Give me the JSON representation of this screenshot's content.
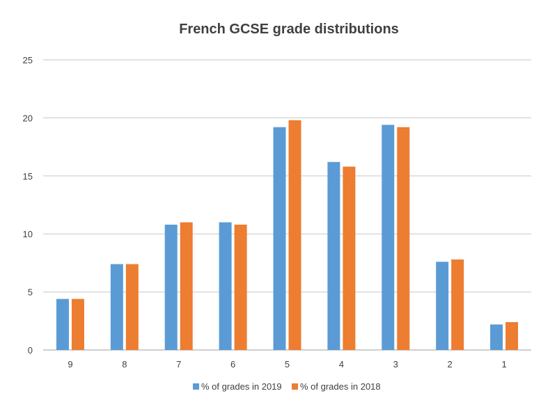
{
  "chart_data": {
    "type": "bar",
    "title": "French GCSE grade distributions",
    "xlabel": "",
    "ylabel": "",
    "categories": [
      "9",
      "8",
      "7",
      "6",
      "5",
      "4",
      "3",
      "2",
      "1"
    ],
    "series": [
      {
        "name": "% of grades in 2019",
        "color": "#5B9BD5",
        "values": [
          4.4,
          7.4,
          10.8,
          11.0,
          19.2,
          16.2,
          19.4,
          7.6,
          2.2
        ]
      },
      {
        "name": "% of grades in 2018",
        "color": "#ED7D31",
        "values": [
          4.4,
          7.4,
          11.0,
          10.8,
          19.8,
          15.8,
          19.2,
          7.8,
          2.4
        ]
      }
    ],
    "ylim": [
      0,
      25
    ],
    "yticks": [
      0,
      5,
      10,
      15,
      20,
      25
    ],
    "grid": true,
    "legend_position": "bottom"
  }
}
